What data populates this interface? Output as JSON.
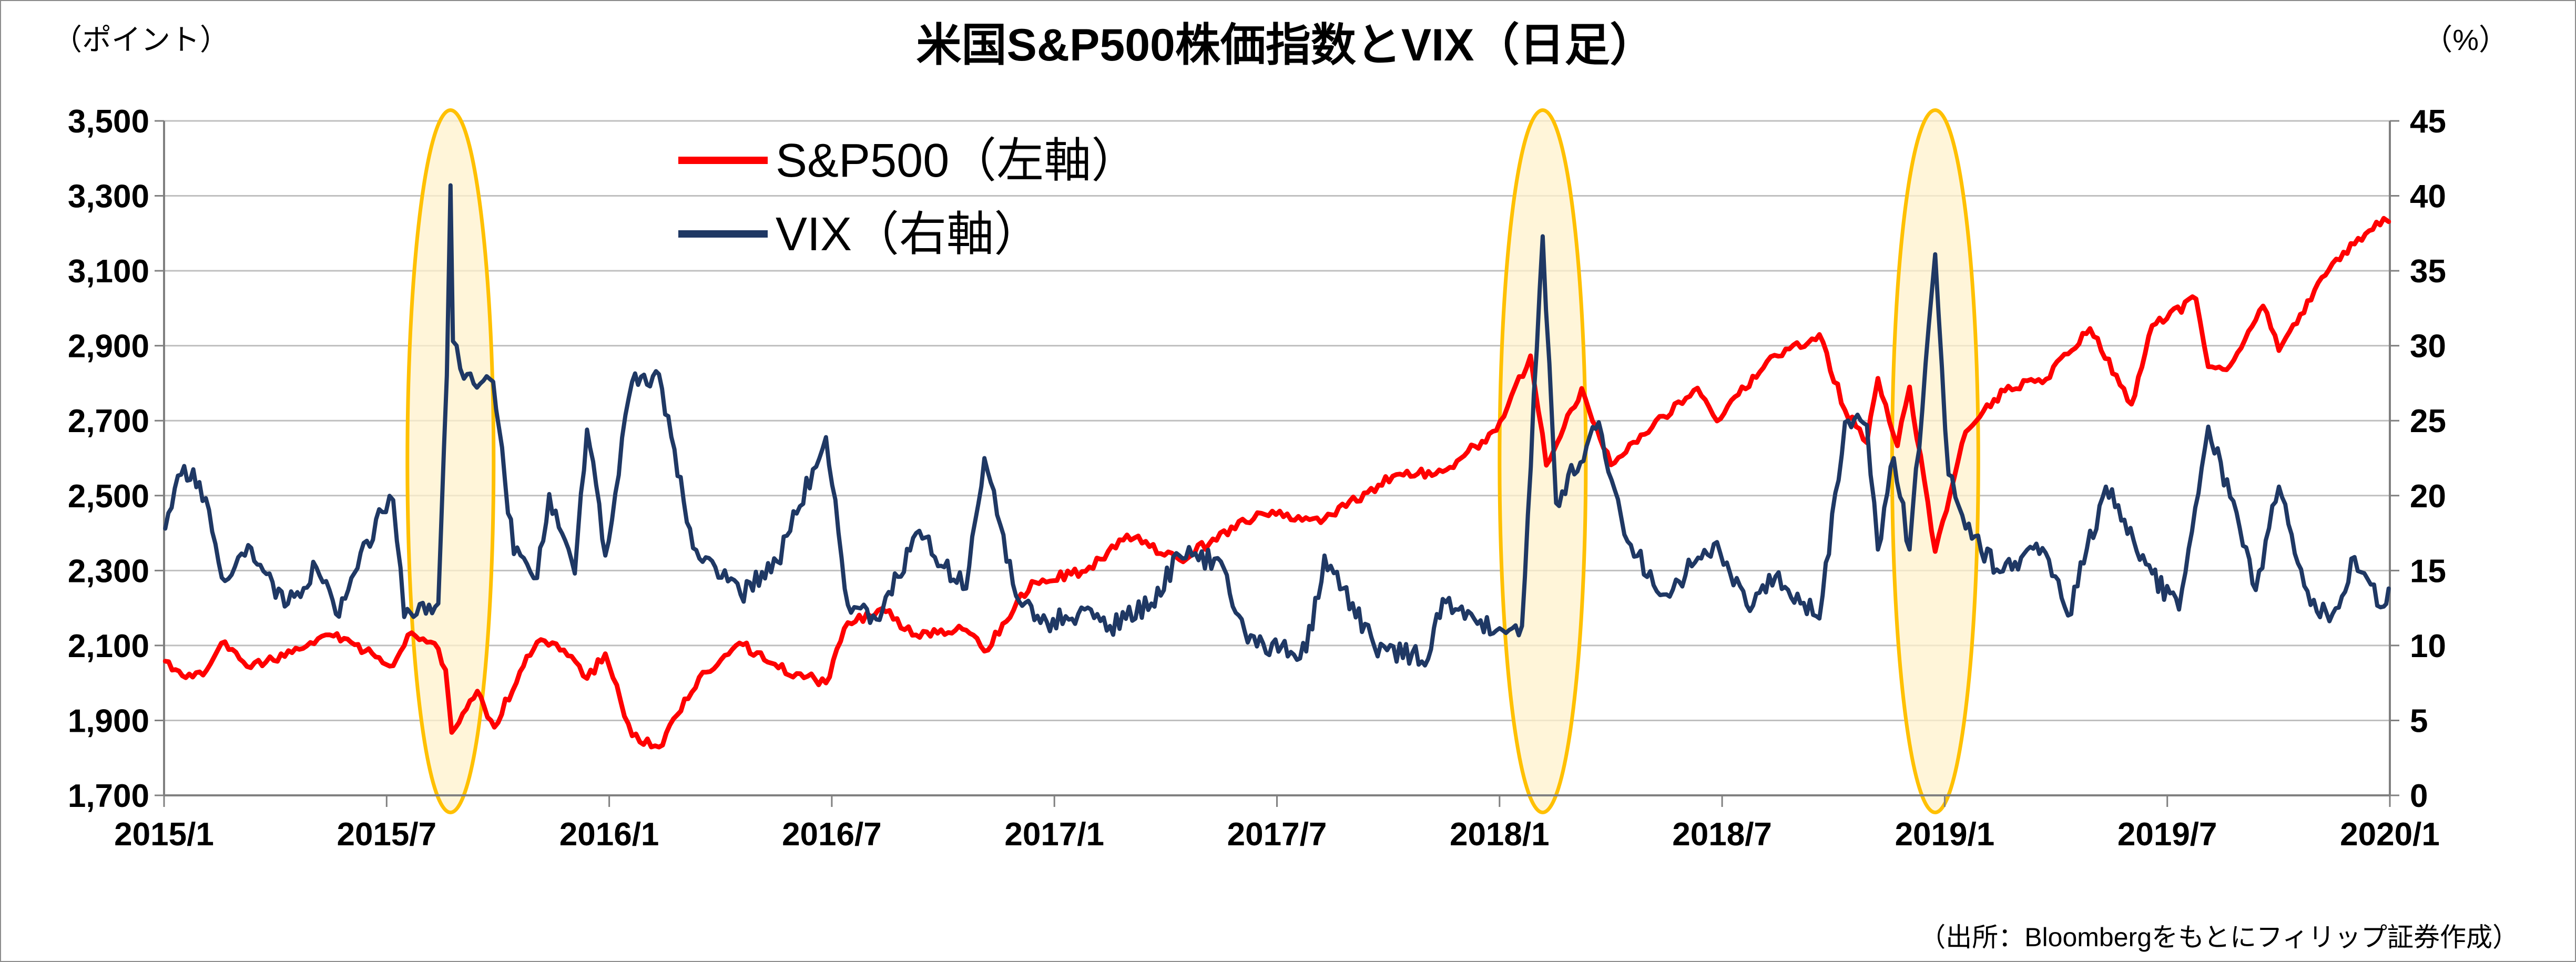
{
  "chart_data": {
    "type": "line",
    "title": "米国S&P500株価指数とVIX（日足）",
    "y_left_unit": "（ポイント）",
    "y_right_unit": "（%）",
    "source": "（出所：Bloombergをもとにフィリップ証券作成）",
    "x_ticks": [
      "2015/1",
      "2015/7",
      "2016/1",
      "2016/7",
      "2017/1",
      "2017/7",
      "2018/1",
      "2018/7",
      "2019/1",
      "2019/7",
      "2020/1"
    ],
    "y_left_ticks": [
      "1,700",
      "1,900",
      "2,100",
      "2,300",
      "2,500",
      "2,700",
      "2,900",
      "3,100",
      "3,300",
      "3,500"
    ],
    "y_right_ticks": [
      "0",
      "5",
      "10",
      "15",
      "20",
      "25",
      "30",
      "35",
      "40",
      "45"
    ],
    "ylim_left": [
      1700,
      3500
    ],
    "ylim_right": [
      0,
      45
    ],
    "x_range": [
      "2015-01-01",
      "2020-01-01"
    ],
    "grid": "horizontal",
    "legend_position": "top-left",
    "highlights": [
      {
        "center": "2015-08-24"
      },
      {
        "center": "2018-02-05"
      },
      {
        "center": "2018-12-24"
      }
    ],
    "series": [
      {
        "name": "S&P500（左軸）",
        "axis": "left",
        "color": "#ff0000",
        "points": [
          [
            "2015-01-02",
            2058
          ],
          [
            "2015-01-16",
            2019
          ],
          [
            "2015-02-02",
            2021
          ],
          [
            "2015-02-20",
            2110
          ],
          [
            "2015-03-10",
            2044
          ],
          [
            "2015-04-01",
            2060
          ],
          [
            "2015-05-01",
            2108
          ],
          [
            "2015-05-20",
            2125
          ],
          [
            "2015-06-15",
            2085
          ],
          [
            "2015-07-08",
            2046
          ],
          [
            "2015-07-20",
            2128
          ],
          [
            "2015-08-14",
            2091
          ],
          [
            "2015-08-20",
            2035
          ],
          [
            "2015-08-25",
            1868
          ],
          [
            "2015-09-15",
            1978
          ],
          [
            "2015-09-29",
            1882
          ],
          [
            "2015-10-20",
            2030
          ],
          [
            "2015-11-03",
            2109
          ],
          [
            "2015-11-25",
            2088
          ],
          [
            "2015-12-14",
            2012
          ],
          [
            "2015-12-29",
            2078
          ],
          [
            "2016-01-20",
            1859
          ],
          [
            "2016-02-11",
            1829
          ],
          [
            "2016-03-15",
            2015
          ],
          [
            "2016-04-20",
            2102
          ],
          [
            "2016-05-19",
            2040
          ],
          [
            "2016-06-27",
            2000
          ],
          [
            "2016-07-15",
            2161
          ],
          [
            "2016-08-15",
            2190
          ],
          [
            "2016-09-09",
            2128
          ],
          [
            "2016-10-20",
            2141
          ],
          [
            "2016-11-04",
            2085
          ],
          [
            "2016-12-13",
            2271
          ],
          [
            "2017-01-26",
            2298
          ],
          [
            "2017-03-01",
            2395
          ],
          [
            "2017-04-13",
            2329
          ],
          [
            "2017-06-19",
            2453
          ],
          [
            "2017-08-10",
            2438
          ],
          [
            "2017-10-05",
            2552
          ],
          [
            "2017-11-15",
            2564
          ],
          [
            "2017-12-29",
            2674
          ],
          [
            "2018-01-26",
            2873
          ],
          [
            "2018-02-08",
            2581
          ],
          [
            "2018-03-09",
            2786
          ],
          [
            "2018-04-02",
            2582
          ],
          [
            "2018-05-15",
            2712
          ],
          [
            "2018-06-12",
            2787
          ],
          [
            "2018-06-28",
            2699
          ],
          [
            "2018-08-08",
            2858
          ],
          [
            "2018-09-20",
            2930
          ],
          [
            "2018-10-11",
            2728
          ],
          [
            "2018-10-29",
            2641
          ],
          [
            "2018-11-07",
            2813
          ],
          [
            "2018-11-23",
            2633
          ],
          [
            "2018-12-03",
            2790
          ],
          [
            "2018-12-24",
            2351
          ],
          [
            "2019-01-18",
            2670
          ],
          [
            "2019-02-22",
            2792
          ],
          [
            "2019-03-22",
            2801
          ],
          [
            "2019-04-30",
            2946
          ],
          [
            "2019-06-03",
            2744
          ],
          [
            "2019-06-20",
            2954
          ],
          [
            "2019-07-26",
            3025
          ],
          [
            "2019-08-05",
            2844
          ],
          [
            "2019-08-23",
            2847
          ],
          [
            "2019-09-19",
            3006
          ],
          [
            "2019-10-02",
            2887
          ],
          [
            "2019-11-15",
            3120
          ],
          [
            "2019-12-27",
            3240
          ],
          [
            "2019-12-31",
            3231
          ]
        ]
      },
      {
        "name": "VIX（右軸）",
        "axis": "right",
        "color": "#1f3864",
        "points": [
          [
            "2015-01-02",
            17.8
          ],
          [
            "2015-01-15",
            21.4
          ],
          [
            "2015-01-30",
            20.9
          ],
          [
            "2015-02-20",
            14.3
          ],
          [
            "2015-03-11",
            16.7
          ],
          [
            "2015-04-10",
            12.6
          ],
          [
            "2015-05-06",
            15.2
          ],
          [
            "2015-05-22",
            12.1
          ],
          [
            "2015-06-29",
            18.9
          ],
          [
            "2015-07-08",
            19.7
          ],
          [
            "2015-07-17",
            11.9
          ],
          [
            "2015-08-14",
            12.8
          ],
          [
            "2015-08-21",
            28.0
          ],
          [
            "2015-08-24",
            40.7
          ],
          [
            "2015-08-26",
            30.3
          ],
          [
            "2015-09-04",
            27.8
          ],
          [
            "2015-09-28",
            27.6
          ],
          [
            "2015-10-15",
            16.1
          ],
          [
            "2015-11-03",
            14.5
          ],
          [
            "2015-11-13",
            20.1
          ],
          [
            "2015-12-04",
            14.8
          ],
          [
            "2015-12-14",
            24.4
          ],
          [
            "2015-12-29",
            16.0
          ],
          [
            "2016-01-20",
            27.6
          ],
          [
            "2016-02-11",
            28.1
          ],
          [
            "2016-03-10",
            16.5
          ],
          [
            "2016-04-18",
            13.4
          ],
          [
            "2016-05-18",
            15.6
          ],
          [
            "2016-06-27",
            23.9
          ],
          [
            "2016-07-15",
            12.7
          ],
          [
            "2016-08-10",
            11.7
          ],
          [
            "2016-09-09",
            17.5
          ],
          [
            "2016-10-20",
            13.8
          ],
          [
            "2016-11-04",
            22.5
          ],
          [
            "2016-11-30",
            13.3
          ],
          [
            "2016-12-20",
            11.5
          ],
          [
            "2017-01-20",
            12.1
          ],
          [
            "2017-02-15",
            11.3
          ],
          [
            "2017-03-21",
            12.8
          ],
          [
            "2017-04-13",
            16.0
          ],
          [
            "2017-05-17",
            15.6
          ],
          [
            "2017-06-08",
            10.2
          ],
          [
            "2017-07-26",
            9.6
          ],
          [
            "2017-08-10",
            16.0
          ],
          [
            "2017-09-20",
            9.9
          ],
          [
            "2017-11-03",
            9.1
          ],
          [
            "2017-11-15",
            13.1
          ],
          [
            "2017-12-29",
            11.0
          ],
          [
            "2018-01-19",
            11.3
          ],
          [
            "2018-02-05",
            37.3
          ],
          [
            "2018-02-16",
            19.5
          ],
          [
            "2018-03-23",
            24.9
          ],
          [
            "2018-04-13",
            17.4
          ],
          [
            "2018-05-15",
            13.4
          ],
          [
            "2018-06-28",
            16.9
          ],
          [
            "2018-07-25",
            12.3
          ],
          [
            "2018-08-15",
            14.6
          ],
          [
            "2018-09-20",
            11.8
          ],
          [
            "2018-10-11",
            24.9
          ],
          [
            "2018-10-29",
            24.7
          ],
          [
            "2018-11-07",
            16.4
          ],
          [
            "2018-11-20",
            22.5
          ],
          [
            "2018-12-03",
            16.4
          ],
          [
            "2018-12-24",
            36.1
          ],
          [
            "2019-01-04",
            21.4
          ],
          [
            "2019-01-18",
            17.8
          ],
          [
            "2019-02-15",
            14.9
          ],
          [
            "2019-03-22",
            16.5
          ],
          [
            "2019-04-12",
            12.0
          ],
          [
            "2019-05-13",
            20.6
          ],
          [
            "2019-06-20",
            14.8
          ],
          [
            "2019-07-12",
            12.4
          ],
          [
            "2019-08-05",
            24.6
          ],
          [
            "2019-08-23",
            19.9
          ],
          [
            "2019-09-13",
            13.7
          ],
          [
            "2019-10-02",
            20.6
          ],
          [
            "2019-10-28",
            12.7
          ],
          [
            "2019-11-15",
            12.1
          ],
          [
            "2019-12-03",
            15.9
          ],
          [
            "2019-12-27",
            12.6
          ],
          [
            "2019-12-31",
            13.8
          ]
        ]
      }
    ]
  }
}
